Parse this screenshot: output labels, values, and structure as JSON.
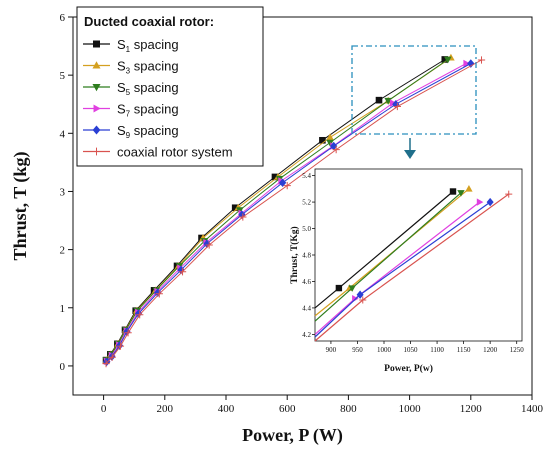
{
  "chart_data": [
    {
      "type": "line",
      "xlabel": "Power, P (W)",
      "ylabel": "Thrust, T (kg)",
      "xlim": [
        -100,
        1400
      ],
      "ylim": [
        -0.5,
        6
      ],
      "xticks": [
        "0",
        "200",
        "400",
        "600",
        "800",
        "1000",
        "1200",
        "1400"
      ],
      "yticks": [
        "0",
        "1",
        "2",
        "3",
        "4",
        "5",
        "6"
      ],
      "legend_title": "Ducted coaxial rotor:",
      "legend_position": "top-left",
      "grid": false,
      "series": [
        {
          "name": "S1 spacing",
          "name_main": "S",
          "name_sub": "1",
          "name_rest": " spacing",
          "color": "#111111",
          "marker": "square",
          "x": [
            8,
            22,
            45,
            70,
            105,
            165,
            240,
            320,
            430,
            560,
            715,
            900,
            1115
          ],
          "y": [
            0.1,
            0.2,
            0.38,
            0.62,
            0.95,
            1.3,
            1.72,
            2.2,
            2.72,
            3.25,
            3.88,
            4.57,
            5.27
          ]
        },
        {
          "name": "S3 spacing",
          "name_main": "S",
          "name_sub": "3",
          "name_rest": " spacing",
          "color": "#d4a020",
          "marker": "triangle-up",
          "x": [
            9,
            24,
            47,
            72,
            108,
            170,
            245,
            325,
            440,
            570,
            740,
            930,
            1135
          ],
          "y": [
            0.1,
            0.2,
            0.38,
            0.62,
            0.95,
            1.3,
            1.72,
            2.2,
            2.72,
            3.25,
            3.93,
            4.56,
            5.3
          ]
        },
        {
          "name": "S5 spacing",
          "name_main": "S",
          "name_sub": "5",
          "name_rest": " spacing",
          "color": "#2e7d1e",
          "marker": "triangle-down",
          "x": [
            9,
            25,
            48,
            73,
            110,
            172,
            248,
            330,
            445,
            575,
            740,
            930,
            1125
          ],
          "y": [
            0.1,
            0.2,
            0.38,
            0.62,
            0.95,
            1.3,
            1.72,
            2.15,
            2.68,
            3.22,
            3.84,
            4.56,
            5.27
          ]
        },
        {
          "name": "S7 spacing",
          "name_main": "S",
          "name_sub": "7",
          "name_rest": " spacing",
          "color": "#e040e0",
          "marker": "triangle-right",
          "x": [
            10,
            26,
            50,
            75,
            112,
            175,
            250,
            335,
            450,
            580,
            750,
            945,
            1185
          ],
          "y": [
            0.08,
            0.18,
            0.36,
            0.6,
            0.92,
            1.28,
            1.68,
            2.12,
            2.62,
            3.18,
            3.78,
            4.52,
            5.2
          ]
        },
        {
          "name": "S9 spacing",
          "name_main": "S",
          "name_sub": "9",
          "name_rest": " spacing",
          "color": "#2a3fd4",
          "marker": "diamond",
          "x": [
            10,
            27,
            52,
            76,
            114,
            177,
            253,
            338,
            452,
            585,
            752,
            955,
            1200
          ],
          "y": [
            0.07,
            0.16,
            0.35,
            0.59,
            0.9,
            1.26,
            1.65,
            2.1,
            2.6,
            3.15,
            3.78,
            4.5,
            5.2
          ]
        },
        {
          "name": "coaxial rotor system",
          "color": "#d9534f",
          "marker": "plus",
          "x": [
            8,
            28,
            55,
            80,
            118,
            182,
            258,
            345,
            455,
            600,
            760,
            960,
            1235
          ],
          "y": [
            0.04,
            0.15,
            0.34,
            0.57,
            0.88,
            1.24,
            1.62,
            2.08,
            2.56,
            3.1,
            3.72,
            4.46,
            5.26
          ]
        }
      ]
    },
    {
      "type": "line",
      "xlabel": "Power, P(w)",
      "ylabel": "Thrust, T(Kg)",
      "xlim": [
        870,
        1260
      ],
      "ylim": [
        4.15,
        5.45
      ],
      "xticks": [
        "900",
        "950",
        "1000",
        "1050",
        "1100",
        "1150",
        "1200",
        "1250"
      ],
      "yticks": [
        "4.2",
        "4.4",
        "4.6",
        "4.8",
        "5.0",
        "5.2",
        "5.4"
      ],
      "series": [
        {
          "name": "S1 spacing",
          "color": "#111111",
          "marker": "square",
          "x": [
            870,
            915,
            1130
          ],
          "y": [
            4.4,
            4.55,
            5.28
          ]
        },
        {
          "name": "S3 spacing",
          "color": "#d4a020",
          "marker": "triangle-up",
          "x": [
            870,
            935,
            1160
          ],
          "y": [
            4.34,
            4.55,
            5.3
          ]
        },
        {
          "name": "S5 spacing",
          "color": "#2e7d1e",
          "marker": "triangle-down",
          "x": [
            870,
            940,
            1145
          ],
          "y": [
            4.3,
            4.55,
            5.27
          ]
        },
        {
          "name": "S7 spacing",
          "color": "#e040e0",
          "marker": "triangle-right",
          "x": [
            870,
            945,
            1180
          ],
          "y": [
            4.2,
            4.47,
            5.2
          ]
        },
        {
          "name": "S9 spacing",
          "color": "#2a3fd4",
          "marker": "diamond",
          "x": [
            870,
            955,
            1200
          ],
          "y": [
            4.18,
            4.5,
            5.2
          ]
        },
        {
          "name": "coaxial rotor system",
          "color": "#d9534f",
          "marker": "plus",
          "x": [
            870,
            960,
            1235
          ],
          "y": [
            4.15,
            4.46,
            5.26
          ]
        }
      ]
    }
  ]
}
